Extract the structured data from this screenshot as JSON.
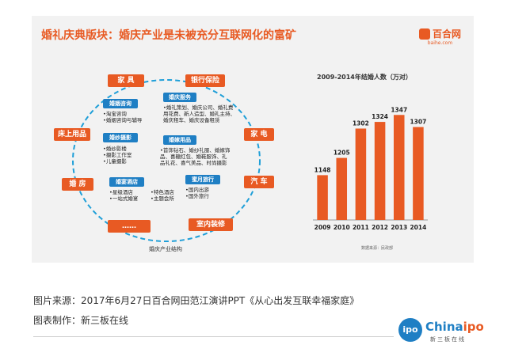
{
  "slide": {
    "title": "婚礼庆典版块：婚庆产业是未被充分互联网化的富矿",
    "logo_text": "百合网",
    "logo_sub": "baihe.com"
  },
  "diagram": {
    "caption": "婚庆产业结构",
    "outer": [
      "家 具",
      "银行保险",
      "家 电",
      "汽 车",
      "室内装修",
      "……",
      "婚 房",
      "床上用品"
    ],
    "inner": [
      {
        "label": "婚姻咨询",
        "lines": [
          "•淘宝咨询",
          "•婚姻咨询与辅导"
        ]
      },
      {
        "label": "婚庆服务",
        "lines": [
          "•婚礼策划、婚庆公司、婚礼费",
          "用花费、新人造型、婚礼主持、",
          "婚庆租车、婚庆设备租赁"
        ]
      },
      {
        "label": "婚纱摄影",
        "lines": [
          "•婚纱影楼",
          "•摄影工作室",
          "•儿童摄影"
        ]
      },
      {
        "label": "婚嫁用品",
        "lines": [
          "•首饰钻石、婚纱礼服、婚嫁饰",
          "品、喜糖红包、婚鞋服饰、礼",
          "品礼花、喜气美品、时尚摄影"
        ]
      },
      {
        "label": "婚宴酒店",
        "lines": [
          "•星级酒店",
          "•一站式婚宴"
        ]
      },
      {
        "label": "蜜月旅行",
        "lines": [
          "•国内出游",
          "•国外旅行"
        ]
      }
    ],
    "extra_lines": [
      "•特色酒店",
      "•主题会所"
    ]
  },
  "chart_data": {
    "type": "bar",
    "title": "2009-2014年结婚人数（万对）",
    "categories": [
      "2009",
      "2010",
      "2011",
      "2012",
      "2013",
      "2014"
    ],
    "values": [
      1148,
      1205,
      1302,
      1324,
      1347,
      1307
    ],
    "ylim": [
      1000,
      1400
    ],
    "note": "数据来源：民政部",
    "color": "#e85a23"
  },
  "captions": {
    "source": "图片来源：2017年6月27日百合网田范江演讲PPT《从心出发互联幸福家庭》",
    "maker": "图表制作：新三板在线"
  },
  "brand": {
    "circle": "ipo",
    "name_a": "China",
    "name_b": "ipo",
    "sub": "新三板在线"
  }
}
